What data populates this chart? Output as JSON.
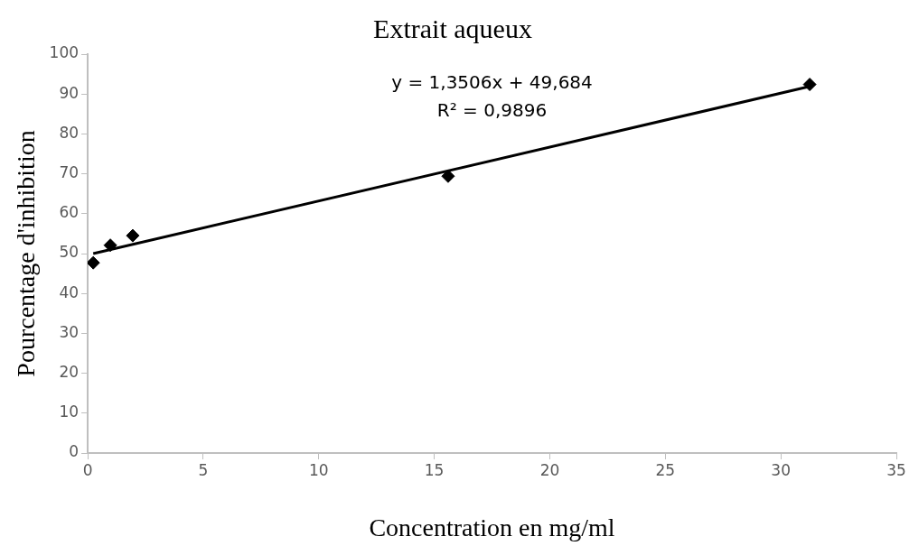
{
  "chart_data": {
    "type": "scatter",
    "title": "Extrait aqueux",
    "xlabel": "Concentration en mg/ml",
    "ylabel": "Pourcentage d'inhibition",
    "annotations": [
      "y = 1,3506x + 49,684",
      "R² = 0,9896"
    ],
    "series": [
      {
        "type": "scatter",
        "color": "#000000",
        "marker": "diamond",
        "x": [
          0.24,
          0.98,
          1.95,
          15.6,
          31.25
        ],
        "values": [
          47.7,
          52.1,
          54.5,
          69.4,
          92.4
        ]
      },
      {
        "type": "line",
        "color": "#000000",
        "marker": "none",
        "line_style": "solid",
        "x": [
          0.24,
          31.25
        ],
        "values": [
          50.0,
          91.9
        ]
      }
    ],
    "xlim": [
      0,
      35
    ],
    "xticks": [
      0,
      5,
      10,
      15,
      20,
      25,
      30,
      35
    ],
    "ylim": [
      0,
      100
    ],
    "yticks": [
      0,
      10,
      20,
      30,
      40,
      50,
      60,
      70,
      80,
      90,
      100
    ],
    "grid": false,
    "legend": false
  }
}
